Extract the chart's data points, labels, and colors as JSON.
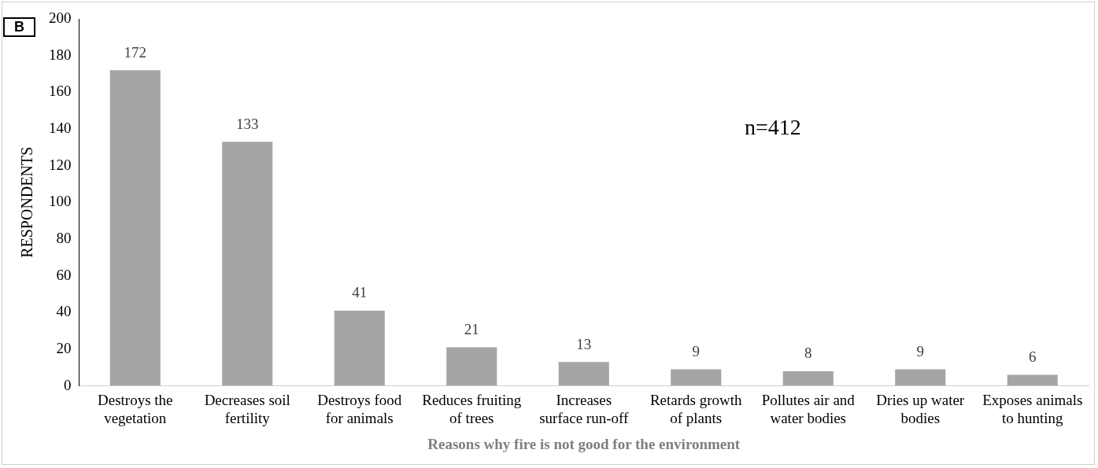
{
  "chart_data": {
    "type": "bar",
    "xlabel": "Reasons why fire is not good for the environment",
    "ylabel": "RESPONDENTS",
    "categories": [
      "Destroys the vegetation",
      "Decreases soil fertility",
      "Destroys food for animals",
      "Reduces fruiting of trees",
      "Increases surface run-off",
      "Retards growth of plants",
      "Pollutes air and water bodies",
      "Dries up water bodies",
      "Exposes animals to hunting"
    ],
    "values": [
      172,
      133,
      41,
      21,
      13,
      9,
      8,
      9,
      6
    ],
    "color": "#a5a5a5",
    "ylim": [
      0,
      200
    ],
    "yticks": [
      0,
      20,
      40,
      60,
      80,
      100,
      120,
      140,
      160,
      180,
      200
    ],
    "grid": false,
    "data_labels": true,
    "legend": false,
    "annotations": [
      "B",
      "n=412"
    ]
  }
}
